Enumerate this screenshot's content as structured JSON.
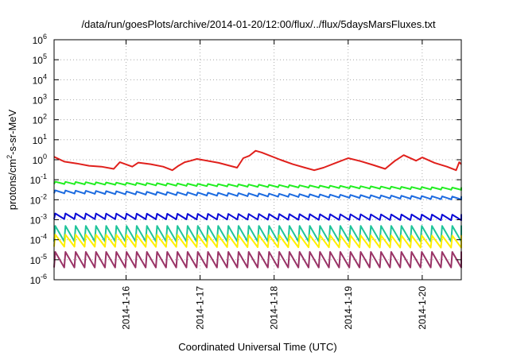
{
  "chart_data": {
    "type": "line",
    "title": "/data/run/goesPlots/archive/2014-01-20/12:00/flux/../flux/5daysMarsFluxes.txt",
    "xlabel": "Coordinated Universal Time (UTC)",
    "ylabel": "protons/cm²-s-sr-MeV",
    "ylabel_parts": {
      "base": "protons/cm",
      "sup": "2",
      "rest": "-s-sr-MeV"
    },
    "y_scale": "log",
    "ylim": [
      1e-06,
      1000000.0
    ],
    "y_ticks": [
      {
        "value": 1e-06,
        "base": "10",
        "exp": "-6"
      },
      {
        "value": 1e-05,
        "base": "10",
        "exp": "-5"
      },
      {
        "value": 0.0001,
        "base": "10",
        "exp": "-4"
      },
      {
        "value": 0.001,
        "base": "10",
        "exp": "-3"
      },
      {
        "value": 0.01,
        "base": "10",
        "exp": "-2"
      },
      {
        "value": 0.1,
        "base": "10",
        "exp": "-1"
      },
      {
        "value": 1.0,
        "base": "10",
        "exp": "0"
      },
      {
        "value": 10.0,
        "base": "10",
        "exp": "1"
      },
      {
        "value": 100.0,
        "base": "10",
        "exp": "2"
      },
      {
        "value": 1000.0,
        "base": "10",
        "exp": "3"
      },
      {
        "value": 10000.0,
        "base": "10",
        "exp": "4"
      },
      {
        "value": 100000.0,
        "base": "10",
        "exp": "5"
      },
      {
        "value": 1000000.0,
        "base": "10",
        "exp": "6"
      }
    ],
    "xlim": [
      "2014-01-15 00:40",
      "2014-01-20 12:40"
    ],
    "x_ticks": [
      {
        "date": "2014-01-16 00:00",
        "label": "2014-1-16"
      },
      {
        "date": "2014-01-17 00:00",
        "label": "2014-1-17"
      },
      {
        "date": "2014-01-18 00:00",
        "label": "2014-1-18"
      },
      {
        "date": "2014-01-19 00:00",
        "label": "2014-1-19"
      },
      {
        "date": "2014-01-20 00:00",
        "label": "2014-1-20"
      }
    ],
    "grid": true,
    "series": [
      {
        "color": "#e0201c",
        "points": [
          [
            "2014-01-15 00:40",
            1.4
          ],
          [
            "2014-01-15 04:00",
            0.8
          ],
          [
            "2014-01-15 08:00",
            0.65
          ],
          [
            "2014-01-15 12:00",
            0.5
          ],
          [
            "2014-01-15 16:00",
            0.45
          ],
          [
            "2014-01-15 20:00",
            0.35
          ],
          [
            "2014-01-15 22:00",
            0.75
          ],
          [
            "2014-01-16 02:00",
            0.45
          ],
          [
            "2014-01-16 04:00",
            0.72
          ],
          [
            "2014-01-16 08:00",
            0.6
          ],
          [
            "2014-01-16 12:00",
            0.45
          ],
          [
            "2014-01-16 15:00",
            0.3
          ],
          [
            "2014-01-16 17:00",
            0.5
          ],
          [
            "2014-01-16 19:00",
            0.75
          ],
          [
            "2014-01-16 21:00",
            0.9
          ],
          [
            "2014-01-16 23:00",
            1.1
          ],
          [
            "2014-01-17 06:00",
            0.7
          ],
          [
            "2014-01-17 12:00",
            0.4
          ],
          [
            "2014-01-17 14:00",
            1.2
          ],
          [
            "2014-01-17 16:00",
            1.6
          ],
          [
            "2014-01-17 18:00",
            2.8
          ],
          [
            "2014-01-17 20:00",
            2.3
          ],
          [
            "2014-01-18 02:00",
            1.0
          ],
          [
            "2014-01-18 06:00",
            0.6
          ],
          [
            "2014-01-18 10:00",
            0.4
          ],
          [
            "2014-01-18 13:00",
            0.3
          ],
          [
            "2014-01-18 16:00",
            0.4
          ],
          [
            "2014-01-18 20:00",
            0.7
          ],
          [
            "2014-01-19 00:00",
            1.2
          ],
          [
            "2014-01-19 04:00",
            0.85
          ],
          [
            "2014-01-19 08:00",
            0.55
          ],
          [
            "2014-01-19 12:00",
            0.35
          ],
          [
            "2014-01-19 15:00",
            0.85
          ],
          [
            "2014-01-19 18:00",
            1.7
          ],
          [
            "2014-01-19 22:00",
            0.9
          ],
          [
            "2014-01-20 00:00",
            1.3
          ],
          [
            "2014-01-20 04:00",
            0.7
          ],
          [
            "2014-01-20 08:00",
            0.45
          ],
          [
            "2014-01-20 11:00",
            0.3
          ],
          [
            "2014-01-20 12:00",
            0.75
          ],
          [
            "2014-01-20 12:40",
            0.6
          ]
        ]
      },
      {
        "color": "#22ee22",
        "level": 0.07,
        "amplitude": 1.3,
        "period_hours": 3.3,
        "trend_to": 0.035
      },
      {
        "color": "#1c6be0",
        "level": 0.025,
        "amplitude": 1.4,
        "period_hours": 3.3,
        "trend_to": 0.012
      },
      {
        "color": "#0a0ad6",
        "level": 0.0015,
        "amplitude": 1.9,
        "period_hours": 3.3,
        "trend_to": 0.0013
      },
      {
        "color": "#1fc49a",
        "level": 0.0002,
        "amplitude": 6,
        "period_hours": 3.3,
        "trend_to": 0.0002
      },
      {
        "color": "#ffee00",
        "level": 9e-05,
        "amplitude": 4,
        "period_hours": 3.3,
        "trend_to": 8e-05
      },
      {
        "color": "#993366",
        "level": 1e-05,
        "amplitude": 6,
        "period_hours": 3.3,
        "trend_to": 1e-05
      }
    ]
  }
}
